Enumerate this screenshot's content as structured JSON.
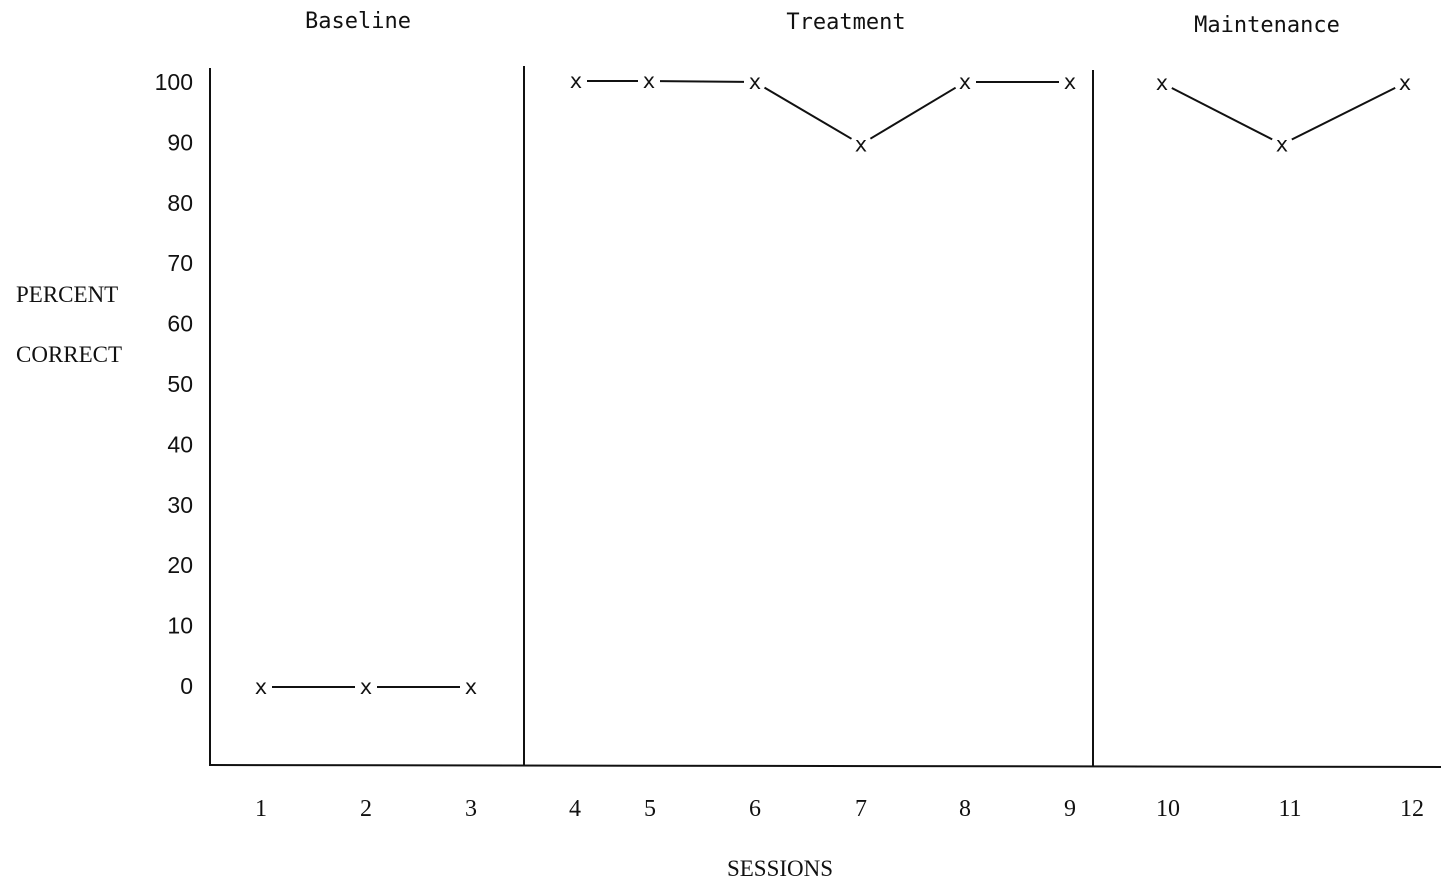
{
  "chart_data": {
    "type": "line",
    "title": "",
    "xlabel": "SESSIONS",
    "ylabel_lines": [
      "PERCENT",
      "CORRECT"
    ],
    "ylim": [
      0,
      100
    ],
    "yticks": [
      "100",
      "90",
      "80",
      "70",
      "60",
      "50",
      "40",
      "30",
      "20",
      "10",
      "0"
    ],
    "marker": "x",
    "grid": false,
    "phases": [
      {
        "name": "Baseline",
        "sessions": [
          "1",
          "2",
          "3"
        ],
        "values": [
          0,
          0,
          0
        ]
      },
      {
        "name": "Treatment",
        "sessions": [
          "4",
          "5",
          "6",
          "7",
          "8",
          "9"
        ],
        "values": [
          100,
          100,
          100,
          90,
          100,
          100
        ]
      },
      {
        "name": "Maintenance",
        "sessions": [
          "10",
          "11",
          "12"
        ],
        "values": [
          100,
          90,
          100
        ]
      }
    ]
  }
}
